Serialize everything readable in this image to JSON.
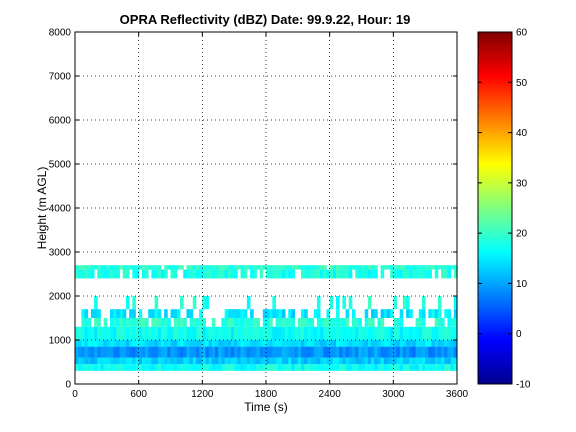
{
  "chart_data": {
    "type": "heatmap",
    "title": "OPRA Reflectivity (dBZ)  Date: 99.9.22, Hour: 19",
    "xlabel": "Time (s)",
    "ylabel": "Height (m AGL)",
    "xlim": [
      0,
      3600
    ],
    "ylim": [
      0,
      8000
    ],
    "x_ticks": [
      0,
      600,
      1200,
      1800,
      2400,
      3000,
      3600
    ],
    "y_ticks": [
      0,
      1000,
      2000,
      3000,
      4000,
      5000,
      6000,
      7000,
      8000
    ],
    "grid": true,
    "colorbar": {
      "colormap": "jet",
      "clim": [
        -10,
        60
      ],
      "ticks": [
        -10,
        0,
        10,
        20,
        30,
        40,
        50,
        60
      ]
    },
    "layers": [
      {
        "height_range": [
          300,
          450
        ],
        "dbz": 17,
        "coverage": 1.0
      },
      {
        "height_range": [
          450,
          600
        ],
        "dbz": 13,
        "coverage": 1.0
      },
      {
        "height_range": [
          600,
          850
        ],
        "dbz": 9,
        "coverage": 1.0
      },
      {
        "height_range": [
          850,
          1000
        ],
        "dbz": 14,
        "coverage": 1.0
      },
      {
        "height_range": [
          1000,
          1300
        ],
        "dbz": 17,
        "coverage": 1.0
      },
      {
        "height_range": [
          1300,
          1500
        ],
        "dbz": 19,
        "coverage": 0.8
      },
      {
        "height_range": [
          1500,
          1700
        ],
        "dbz": 15,
        "coverage": 0.6
      },
      {
        "height_range": [
          1700,
          2000
        ],
        "dbz": 18,
        "coverage": 0.2
      },
      {
        "height_range": [
          2400,
          2600
        ],
        "dbz": 18,
        "coverage": 0.85
      },
      {
        "height_range": [
          2600,
          2700
        ],
        "dbz": 19,
        "coverage": 0.95
      }
    ]
  }
}
